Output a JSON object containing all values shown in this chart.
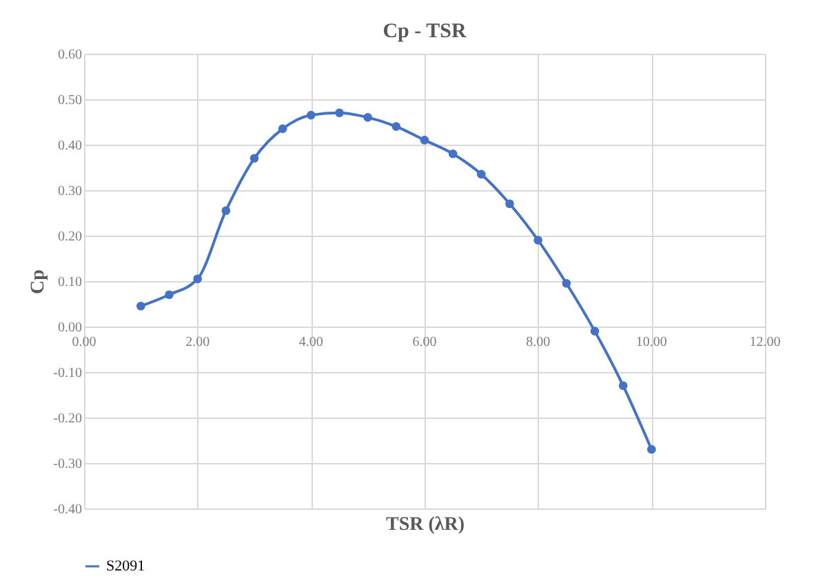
{
  "chart_data": {
    "type": "line",
    "title": "Cp - TSR",
    "xlabel": "TSR (λR)",
    "ylabel": "Cp",
    "x": [
      1,
      1.5,
      2,
      2.5,
      3,
      3.5,
      4,
      4.5,
      5,
      5.5,
      6,
      6.5,
      7,
      7.5,
      8,
      8.5,
      9,
      9.5,
      10
    ],
    "series": [
      {
        "name": "S2091",
        "color": "#4472c4",
        "values": [
          0.045,
          0.07,
          0.105,
          0.255,
          0.37,
          0.435,
          0.465,
          0.47,
          0.46,
          0.44,
          0.41,
          0.38,
          0.335,
          0.27,
          0.19,
          0.095,
          -0.01,
          -0.13,
          -0.27
        ]
      }
    ],
    "xlim": [
      0,
      12
    ],
    "ylim": [
      -0.4,
      0.6
    ],
    "xticks": [
      {
        "value": 0,
        "label": "0.00"
      },
      {
        "value": 2,
        "label": "2.00"
      },
      {
        "value": 4,
        "label": "4.00"
      },
      {
        "value": 6,
        "label": "6.00"
      },
      {
        "value": 8,
        "label": "8.00"
      },
      {
        "value": 10,
        "label": "10.00"
      },
      {
        "value": 12,
        "label": "12.00"
      }
    ],
    "yticks": [
      {
        "value": -0.4,
        "label": "-0.40"
      },
      {
        "value": -0.3,
        "label": "-0.30"
      },
      {
        "value": -0.2,
        "label": "-0.20"
      },
      {
        "value": -0.1,
        "label": "-0.10"
      },
      {
        "value": 0,
        "label": "0.00"
      },
      {
        "value": 0.1,
        "label": "0.10"
      },
      {
        "value": 0.2,
        "label": "0.20"
      },
      {
        "value": 0.3,
        "label": "0.30"
      },
      {
        "value": 0.4,
        "label": "0.40"
      },
      {
        "value": 0.5,
        "label": "0.50"
      },
      {
        "value": 0.6,
        "label": "0.60"
      }
    ],
    "grid": true,
    "legend": "bottom",
    "marker": "circle",
    "line_style": "solid"
  }
}
